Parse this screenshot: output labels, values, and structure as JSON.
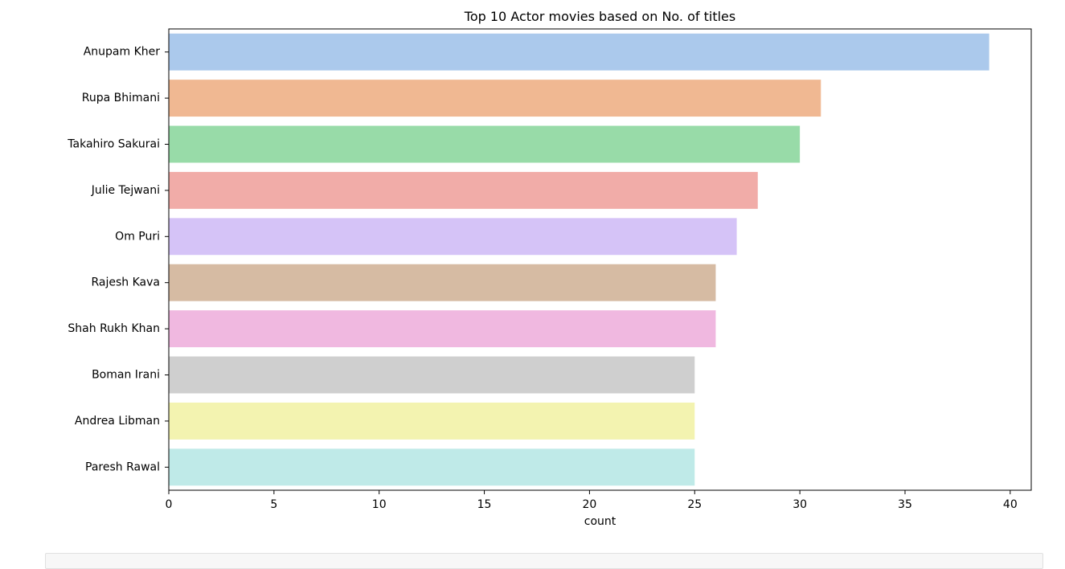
{
  "chart_data": {
    "type": "bar",
    "orientation": "horizontal",
    "title": "Top 10 Actor movies based on No. of titles",
    "xlabel": "count",
    "ylabel": "",
    "categories": [
      "Anupam Kher",
      "Rupa Bhimani",
      "Takahiro Sakurai",
      "Julie Tejwani",
      "Om Puri",
      "Rajesh Kava",
      "Shah Rukh Khan",
      "Boman Irani",
      "Andrea Libman",
      "Paresh Rawal"
    ],
    "values": [
      39,
      31,
      30,
      28,
      27,
      26,
      26,
      25,
      25,
      25
    ],
    "colors": [
      "#abc9ec",
      "#f0b892",
      "#98dba8",
      "#f1aca8",
      "#d5c3f7",
      "#d6bba3",
      "#f0b8e0",
      "#cfcfcf",
      "#f3f3b0",
      "#bfeae8"
    ],
    "xlim": [
      0,
      41
    ],
    "xticks": [
      0,
      5,
      10,
      15,
      20,
      25,
      30,
      35,
      40
    ],
    "grid": false,
    "legend": "none"
  }
}
